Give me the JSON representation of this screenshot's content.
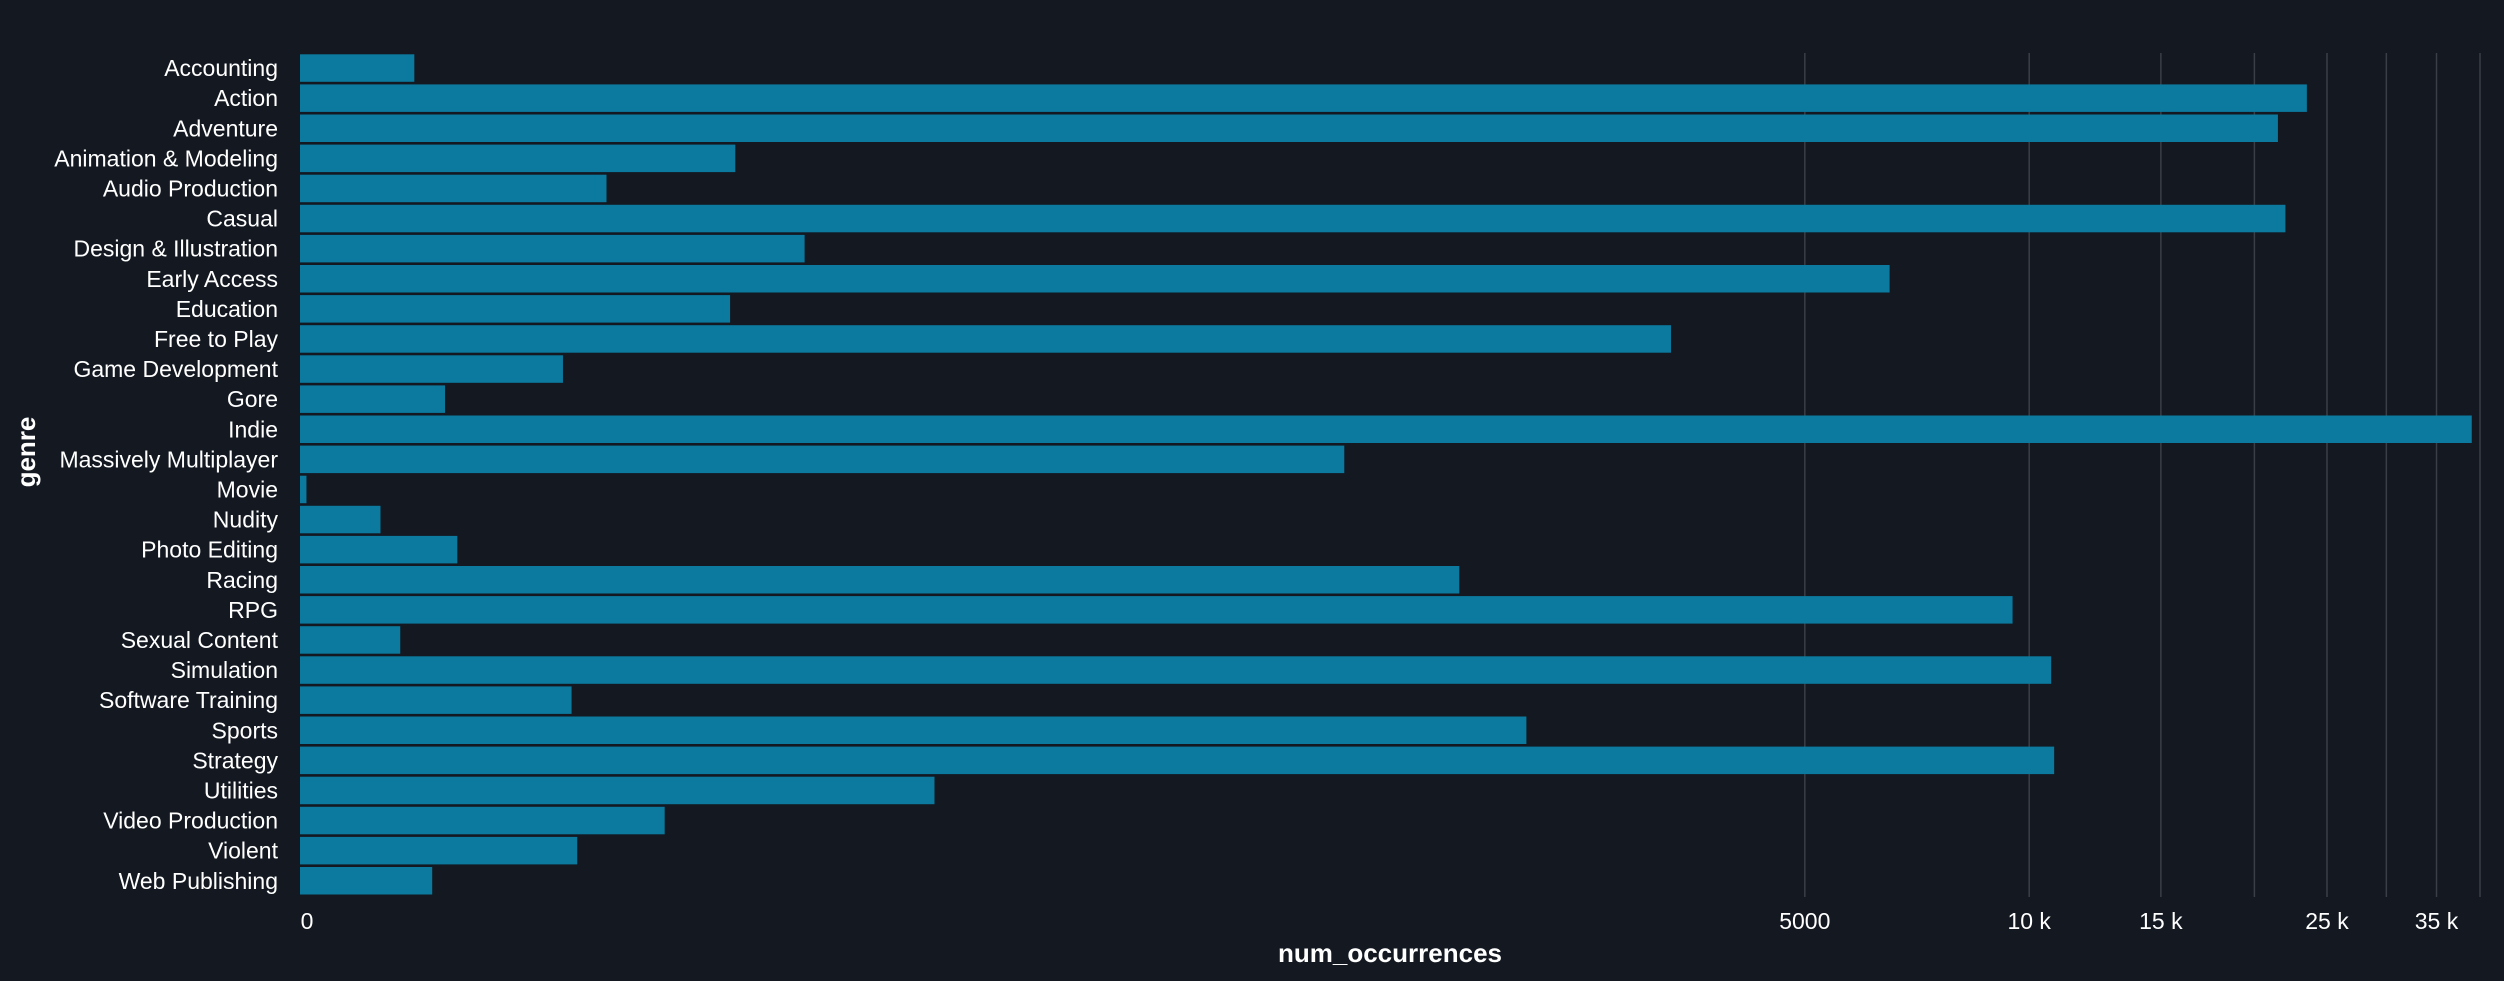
{
  "chart_data": {
    "type": "bar",
    "orientation": "horizontal",
    "title": "",
    "xlabel": "num_occurrences",
    "ylabel": "genre",
    "x_scale": "symlog",
    "xlim": [
      0,
      40000
    ],
    "grid": "vertical",
    "bar_color": "#0b7a9e",
    "background_color": "#131821",
    "grid_color": "#3a3f47",
    "text_color": "#ffffff",
    "x_ticks": [
      0,
      5000,
      10000,
      15000,
      20000,
      25000,
      30000,
      35000,
      40000
    ],
    "x_tick_labels": [
      "0",
      "",
      "",
      "",
      "",
      "",
      "",
      "",
      ""
    ],
    "x_tick_labels_visible": [
      {
        "value": 0,
        "label": "0"
      },
      {
        "value": 5000,
        "label": "5000"
      },
      {
        "value": 10000,
        "label": "10 k"
      },
      {
        "value": 15000,
        "label": "15 k"
      },
      {
        "value": 25000,
        "label": "25 k"
      },
      {
        "value": 35000,
        "label": "35 k"
      }
    ],
    "categories": [
      "Accounting",
      "Action",
      "Adventure",
      "Animation & Modeling",
      "Audio Production",
      "Casual",
      "Design & Illustration",
      "Early Access",
      "Education",
      "Free to Play",
      "Game Development",
      "Gore",
      "Indie",
      "Massively Multiplayer",
      "Movie",
      "Nudity",
      "Photo Editing",
      "Racing",
      "RPG",
      "Sexual Content",
      "Simulation",
      "Software Training",
      "Sports",
      "Strategy",
      "Utilities",
      "Video Production",
      "Violent",
      "Web Publishing"
    ],
    "values": [
      21,
      23500,
      21500,
      140,
      78,
      22000,
      185,
      6500,
      137,
      3300,
      62,
      28,
      39000,
      1180,
      1,
      14,
      31,
      1700,
      9500,
      18,
      10700,
      65,
      2100,
      10800,
      300,
      103,
      67,
      25
    ]
  }
}
